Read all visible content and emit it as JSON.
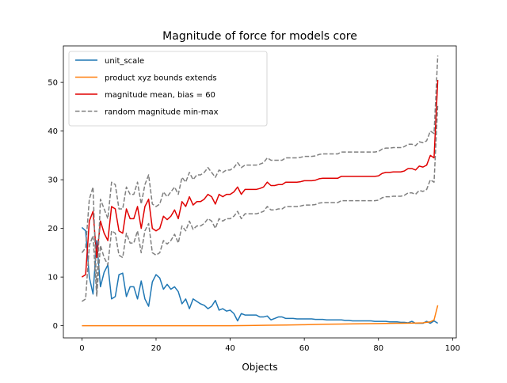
{
  "chart_data": {
    "type": "line",
    "title": "Magnitude of force for models core",
    "xlabel": "Objects",
    "ylabel": "",
    "xlim": [
      -5,
      101
    ],
    "ylim": [
      -2.5,
      57.5
    ],
    "xticks": [
      0,
      20,
      40,
      60,
      80,
      100
    ],
    "yticks": [
      0,
      10,
      20,
      30,
      40,
      50
    ],
    "grid": false,
    "legend_position": "top-left",
    "series": [
      {
        "name": "unit_scale",
        "color": "#1f77b4",
        "dash": "solid",
        "x": [
          0,
          1,
          2,
          3,
          4,
          5,
          6,
          7,
          8,
          9,
          10,
          11,
          12,
          13,
          14,
          15,
          16,
          17,
          18,
          19,
          20,
          21,
          22,
          23,
          24,
          25,
          26,
          27,
          28,
          29,
          30,
          31,
          32,
          33,
          34,
          35,
          36,
          37,
          38,
          39,
          40,
          41,
          42,
          43,
          44,
          45,
          46,
          47,
          48,
          49,
          50,
          51,
          52,
          53,
          54,
          55,
          56,
          57,
          58,
          59,
          60,
          61,
          62,
          63,
          64,
          65,
          66,
          67,
          68,
          69,
          70,
          71,
          72,
          73,
          74,
          75,
          76,
          77,
          78,
          79,
          80,
          81,
          82,
          83,
          84,
          85,
          86,
          87,
          88,
          89,
          90,
          91,
          92,
          93,
          94,
          95,
          96
        ],
        "values": [
          20.2,
          19.5,
          10.0,
          6.5,
          17.5,
          8.0,
          11.0,
          12.5,
          5.5,
          6.0,
          10.5,
          10.8,
          6.0,
          8.0,
          8.0,
          5.5,
          9.2,
          5.5,
          4.0,
          9.0,
          10.5,
          9.8,
          7.5,
          8.5,
          7.5,
          8.0,
          7.0,
          4.5,
          5.5,
          3.5,
          5.5,
          5.0,
          4.5,
          4.2,
          3.5,
          4.0,
          5.2,
          3.2,
          3.5,
          3.0,
          3.2,
          2.5,
          1.0,
          2.5,
          2.2,
          2.2,
          2.2,
          2.2,
          1.8,
          1.8,
          2.0,
          1.2,
          1.5,
          1.8,
          1.8,
          1.5,
          1.5,
          1.5,
          1.4,
          1.4,
          1.4,
          1.4,
          1.4,
          1.3,
          1.3,
          1.3,
          1.2,
          1.2,
          1.2,
          1.2,
          1.2,
          1.1,
          1.1,
          1.0,
          1.0,
          1.0,
          1.0,
          1.0,
          1.0,
          0.9,
          0.9,
          0.9,
          0.9,
          0.8,
          0.8,
          0.8,
          0.7,
          0.7,
          0.6,
          0.9,
          0.5,
          0.5,
          0.5,
          0.9,
          0.5,
          1.0,
          0.5
        ]
      },
      {
        "name": "product xyz bounds extends",
        "color": "#ff7f0e",
        "dash": "solid",
        "x": [
          0,
          10,
          20,
          30,
          40,
          45,
          50,
          55,
          60,
          65,
          70,
          75,
          80,
          85,
          90,
          92,
          94,
          95,
          96
        ],
        "values": [
          0,
          0,
          0,
          0,
          0,
          0.05,
          0.1,
          0.15,
          0.2,
          0.3,
          0.35,
          0.4,
          0.45,
          0.5,
          0.55,
          0.6,
          0.8,
          1.2,
          4.2
        ]
      },
      {
        "name": "magnitude mean, bias = 60",
        "color": "#e00000",
        "dash": "solid",
        "x": [
          0,
          1,
          2,
          3,
          4,
          5,
          6,
          7,
          8,
          9,
          10,
          11,
          12,
          13,
          14,
          15,
          16,
          17,
          18,
          19,
          20,
          21,
          22,
          23,
          24,
          25,
          26,
          27,
          28,
          29,
          30,
          31,
          32,
          33,
          34,
          35,
          36,
          37,
          38,
          39,
          40,
          41,
          42,
          43,
          44,
          45,
          46,
          47,
          48,
          49,
          50,
          51,
          52,
          53,
          54,
          55,
          56,
          57,
          58,
          59,
          60,
          61,
          62,
          63,
          64,
          65,
          66,
          67,
          68,
          69,
          70,
          71,
          72,
          73,
          74,
          75,
          76,
          77,
          78,
          79,
          80,
          81,
          82,
          83,
          84,
          85,
          86,
          87,
          88,
          89,
          90,
          91,
          92,
          93,
          94,
          95,
          96
        ],
        "values": [
          10.0,
          10.5,
          21.5,
          23.5,
          14.0,
          21.5,
          19.0,
          17.5,
          24.5,
          24.0,
          19.5,
          19.0,
          24.0,
          22.0,
          22.0,
          24.5,
          20.0,
          24.5,
          26.0,
          20.0,
          19.5,
          20.0,
          22.5,
          21.8,
          22.5,
          23.8,
          22.0,
          25.5,
          24.5,
          26.5,
          24.8,
          25.5,
          25.5,
          26.0,
          27.0,
          26.5,
          25.0,
          27.0,
          26.5,
          27.0,
          27.0,
          27.5,
          28.5,
          27.0,
          28.0,
          28.0,
          28.0,
          28.0,
          28.2,
          28.5,
          29.5,
          28.8,
          28.8,
          29.0,
          29.0,
          29.5,
          29.5,
          29.5,
          29.5,
          29.6,
          29.8,
          29.8,
          29.8,
          29.9,
          30.2,
          30.3,
          30.3,
          30.3,
          30.3,
          30.3,
          30.7,
          30.7,
          30.7,
          30.7,
          30.7,
          30.7,
          30.7,
          30.7,
          30.7,
          30.7,
          30.8,
          31.3,
          31.5,
          31.5,
          31.6,
          31.6,
          31.6,
          31.8,
          32.3,
          32.3,
          32.0,
          32.8,
          32.6,
          33.0,
          35.0,
          34.5,
          50.5
        ]
      },
      {
        "name": "random magnitude min-max",
        "color": "#808080",
        "dash": "dashed",
        "x": [
          0,
          1,
          2,
          3,
          4,
          5,
          6,
          7,
          8,
          9,
          10,
          11,
          12,
          13,
          14,
          15,
          16,
          17,
          18,
          19,
          20,
          21,
          22,
          23,
          24,
          25,
          26,
          27,
          28,
          29,
          30,
          31,
          32,
          33,
          34,
          35,
          36,
          37,
          38,
          39,
          40,
          41,
          42,
          43,
          44,
          45,
          46,
          47,
          48,
          49,
          50,
          51,
          52,
          53,
          54,
          55,
          56,
          57,
          58,
          59,
          60,
          61,
          62,
          63,
          64,
          65,
          66,
          67,
          68,
          69,
          70,
          71,
          72,
          73,
          74,
          75,
          76,
          77,
          78,
          79,
          80,
          81,
          82,
          83,
          84,
          85,
          86,
          87,
          88,
          89,
          90,
          91,
          92,
          93,
          94,
          95,
          96
        ],
        "values": [
          15.0,
          16.0,
          26.0,
          28.5,
          7.0,
          26.0,
          24.0,
          22.0,
          29.5,
          29.0,
          24.0,
          24.0,
          28.5,
          27.0,
          27.0,
          29.5,
          25.0,
          29.0,
          31.0,
          25.0,
          24.5,
          25.0,
          27.5,
          26.5,
          27.5,
          28.5,
          27.0,
          30.5,
          29.5,
          31.5,
          30.0,
          31.0,
          31.0,
          31.5,
          32.5,
          31.5,
          30.5,
          32.0,
          31.5,
          32.0,
          32.0,
          32.5,
          33.5,
          32.5,
          33.0,
          33.0,
          33.0,
          33.0,
          33.2,
          33.5,
          34.5,
          34.0,
          34.0,
          34.0,
          34.0,
          34.5,
          34.5,
          34.5,
          34.5,
          34.6,
          34.8,
          34.8,
          34.8,
          34.9,
          35.2,
          35.3,
          35.3,
          35.3,
          35.3,
          35.3,
          35.7,
          35.7,
          35.7,
          35.7,
          35.7,
          35.7,
          35.7,
          35.7,
          35.7,
          35.7,
          35.8,
          36.3,
          36.5,
          36.5,
          36.6,
          36.6,
          36.6,
          36.8,
          37.3,
          37.3,
          37.0,
          37.8,
          37.6,
          38.0,
          40.0,
          39.5,
          55.5
        ]
      },
      {
        "name": "",
        "color": "#808080",
        "dash": "dashed",
        "x": [
          0,
          1,
          2,
          3,
          4,
          5,
          6,
          7,
          8,
          9,
          10,
          11,
          12,
          13,
          14,
          15,
          16,
          17,
          18,
          19,
          20,
          21,
          22,
          23,
          24,
          25,
          26,
          27,
          28,
          29,
          30,
          31,
          32,
          33,
          34,
          35,
          36,
          37,
          38,
          39,
          40,
          41,
          42,
          43,
          44,
          45,
          46,
          47,
          48,
          49,
          50,
          51,
          52,
          53,
          54,
          55,
          56,
          57,
          58,
          59,
          60,
          61,
          62,
          63,
          64,
          65,
          66,
          67,
          68,
          69,
          70,
          71,
          72,
          73,
          74,
          75,
          76,
          77,
          78,
          79,
          80,
          81,
          82,
          83,
          84,
          85,
          86,
          87,
          88,
          89,
          90,
          91,
          92,
          93,
          94,
          95,
          96
        ],
        "values": [
          5.0,
          5.5,
          16.5,
          18.5,
          6.0,
          16.5,
          14.0,
          12.5,
          19.5,
          19.0,
          14.5,
          14.0,
          19.0,
          17.0,
          17.0,
          19.5,
          15.0,
          19.5,
          21.0,
          15.0,
          14.5,
          15.0,
          17.5,
          16.8,
          17.5,
          18.8,
          17.0,
          20.5,
          19.5,
          21.5,
          19.8,
          20.5,
          20.5,
          21.0,
          22.0,
          21.5,
          20.0,
          22.0,
          21.5,
          22.0,
          22.0,
          22.5,
          23.5,
          22.0,
          23.0,
          23.0,
          23.0,
          23.0,
          23.2,
          23.5,
          24.5,
          23.8,
          23.8,
          24.0,
          24.0,
          24.5,
          24.5,
          24.5,
          24.5,
          24.6,
          24.8,
          24.8,
          24.8,
          24.9,
          25.2,
          25.3,
          25.3,
          25.3,
          25.3,
          25.3,
          25.7,
          25.7,
          25.7,
          25.7,
          25.7,
          25.7,
          25.7,
          25.7,
          25.7,
          25.7,
          25.8,
          26.3,
          26.5,
          26.5,
          26.6,
          26.6,
          26.6,
          26.8,
          27.3,
          27.3,
          27.0,
          27.8,
          27.6,
          28.0,
          30.0,
          29.5,
          45.5
        ]
      }
    ]
  }
}
